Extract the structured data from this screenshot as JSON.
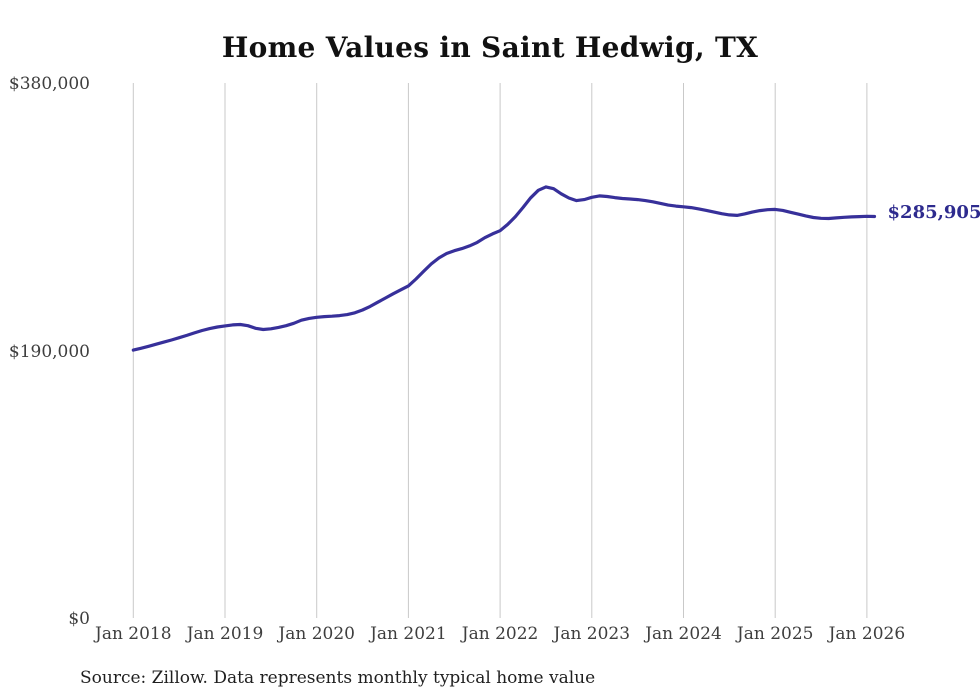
{
  "chart": {
    "title": "Home Values in Saint Hedwig, TX",
    "source_note": "Source: Zillow. Data represents monthly typical home value"
  },
  "chart_data": {
    "type": "line",
    "title": "Home Values in Saint Hedwig, TX",
    "x_frequency": "monthly",
    "x_start": "Jan 2018",
    "x_end": "Feb 2026",
    "x_tick_labels": [
      "Jan 2018",
      "Jan 2019",
      "Jan 2020",
      "Jan 2021",
      "Jan 2022",
      "Jan 2023",
      "Jan 2024",
      "Jan 2025",
      "Jan 2026"
    ],
    "ylim": [
      0,
      380000
    ],
    "y_ticks": [
      {
        "value": 380000,
        "label": "$380,000"
      },
      {
        "value": 190000,
        "label": "$190,000"
      },
      {
        "value": 0,
        "label": "$0"
      }
    ],
    "grid": "vertical",
    "legend": "none",
    "line_color": "#37309a",
    "gridline_color": "#c9c9c9",
    "end_label": "$285,905",
    "end_label_color": "#2d2a8e",
    "last_value": 285905,
    "series": [
      {
        "name": "Typical home value",
        "values": [
          191000,
          192300,
          193700,
          195200,
          196700,
          198200,
          199800,
          201400,
          203200,
          204900,
          206300,
          207400,
          208200,
          208900,
          209200,
          208300,
          206500,
          205600,
          206100,
          207100,
          208300,
          210000,
          212200,
          213500,
          214300,
          214800,
          215100,
          215500,
          216200,
          217500,
          219500,
          222000,
          225000,
          228000,
          231000,
          233800,
          236600,
          241500,
          247000,
          252200,
          256500,
          259600,
          261600,
          263100,
          265000,
          267500,
          270800,
          273500,
          275800,
          280300,
          285800,
          292300,
          299200,
          304500,
          306900,
          305600,
          302000,
          299000,
          297200,
          297900,
          299500,
          300500,
          300100,
          299300,
          298700,
          298300,
          297900,
          297200,
          296300,
          295200,
          294000,
          293300,
          292800,
          292200,
          291300,
          290200,
          289000,
          287900,
          287000,
          286700,
          287700,
          289000,
          290100,
          290700,
          290900,
          290200,
          288900,
          287600,
          286300,
          285200,
          284600,
          284500,
          284900,
          285300,
          285600,
          285800,
          286000,
          285905
        ]
      }
    ]
  }
}
